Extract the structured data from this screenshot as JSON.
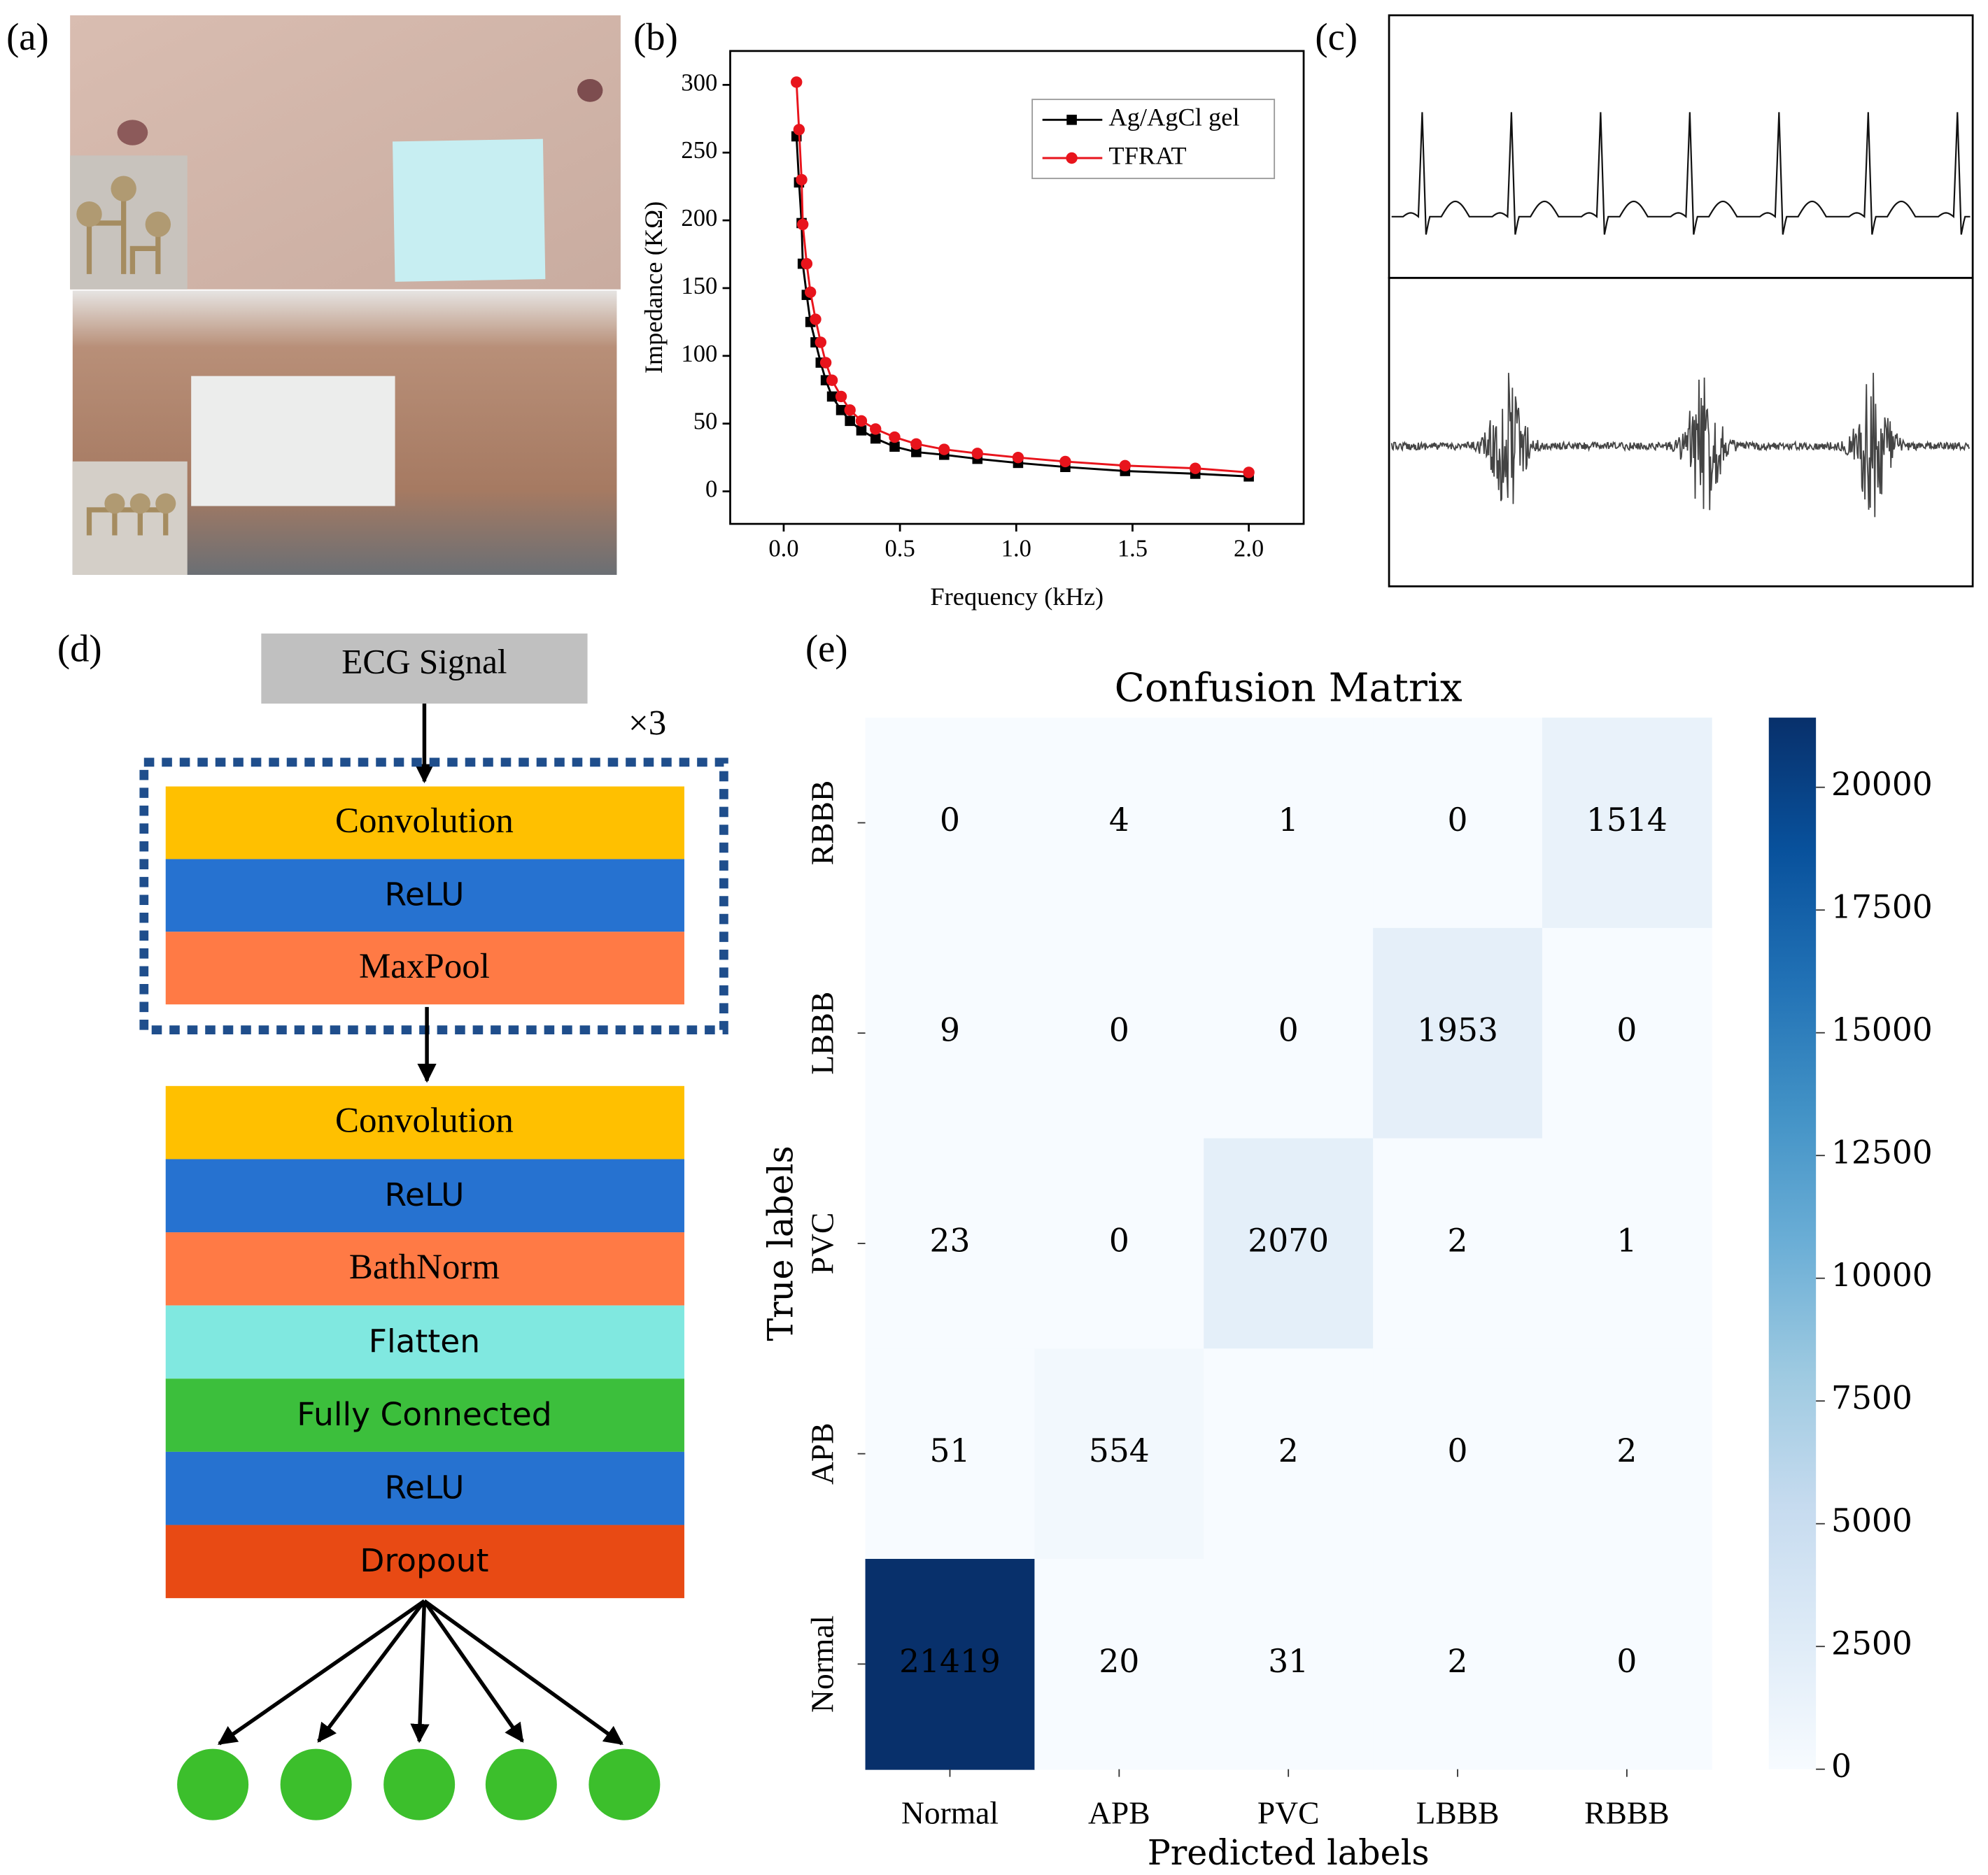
{
  "panel_labels": [
    "(a)",
    "(b)",
    "(c)",
    "(d)",
    "(e)"
  ],
  "chart_data": [
    {
      "type": "line",
      "xlabel": "Frequency (kHz)",
      "ylabel": "Impedance (KΩ)",
      "x": [
        0.055,
        0.066,
        0.077,
        0.082,
        0.099,
        0.115,
        0.137,
        0.159,
        0.181,
        0.208,
        0.247,
        0.285,
        0.334,
        0.395,
        0.477,
        0.57,
        0.69,
        0.833,
        1.008,
        1.211,
        1.468,
        1.77,
        2.0
      ],
      "series": [
        {
          "name": "Ag/AgCl gel",
          "color": "#000000",
          "marker": "square",
          "values": [
            262,
            228,
            198,
            168,
            145,
            125,
            110,
            95,
            82,
            70,
            60,
            52,
            45,
            39,
            33,
            29,
            27,
            24,
            21,
            18,
            15,
            13,
            11
          ]
        },
        {
          "name": "TFRAT",
          "color": "#e8141c",
          "marker": "circle",
          "values": [
            302,
            267,
            230,
            197,
            168,
            147,
            127,
            110,
            95,
            82,
            70,
            60,
            52,
            46,
            40,
            35,
            31,
            28,
            25,
            22,
            19,
            17,
            14
          ]
        }
      ],
      "xlim": [
        -0.23,
        2.236
      ],
      "ylim": [
        -24,
        325
      ],
      "xticks": [
        {
          "value": 0,
          "label": "0.0"
        },
        0.5,
        {
          "value": 1,
          "label": "1.0"
        },
        1.5,
        {
          "value": 2,
          "label": "2.0"
        }
      ],
      "yticks": [
        0,
        50,
        100,
        150,
        200,
        250,
        300
      ],
      "legend": "upper right"
    },
    {
      "type": "heatmap",
      "title": "Confusion Matrix",
      "xlabel": "Predicted labels",
      "ylabel": "True labels",
      "categories": [
        "Normal",
        "APB",
        "PVC",
        "LBBB",
        "RBBB"
      ],
      "y_categories": [
        "RBBB",
        "LBBB",
        "PVC",
        "APB",
        "Normal"
      ],
      "values": [
        [
          0,
          4,
          1,
          0,
          1514
        ],
        [
          9,
          0,
          0,
          1953,
          0
        ],
        [
          23,
          0,
          2070,
          2,
          1
        ],
        [
          51,
          554,
          2,
          0,
          2
        ],
        [
          21419,
          20,
          31,
          2,
          0
        ]
      ],
      "colormap": "Blues",
      "clim": [
        0,
        21419
      ],
      "cticks": [
        0,
        2500,
        5000,
        7500,
        10000,
        12500,
        15000,
        17500,
        20000
      ]
    }
  ],
  "diagram": {
    "input": "ECG Signal",
    "repeat": "×3",
    "block": [
      {
        "label": "Convolution",
        "color": "#ffc000",
        "font": "serif"
      },
      {
        "label": "ReLU",
        "color": "#2672d0",
        "font": "sans"
      },
      {
        "label": "MaxPool",
        "color": "#ff7a45",
        "font": "serif"
      }
    ],
    "layers": [
      {
        "label": "Convolution",
        "color": "#ffc000",
        "font": "serif"
      },
      {
        "label": "ReLU",
        "color": "#2672d0",
        "font": "sans"
      },
      {
        "label": "BathNorm",
        "color": "#ff7a45",
        "font": "serif"
      },
      {
        "label": "Flatten",
        "color": "#80e8e0",
        "font": "sans"
      },
      {
        "label": "Fully Connected",
        "color": "#3cbf3c",
        "font": "sans"
      },
      {
        "label": "ReLU",
        "color": "#2672d0",
        "font": "sans"
      },
      {
        "label": "Dropout",
        "color": "#e84a14",
        "font": "sans"
      }
    ]
  }
}
